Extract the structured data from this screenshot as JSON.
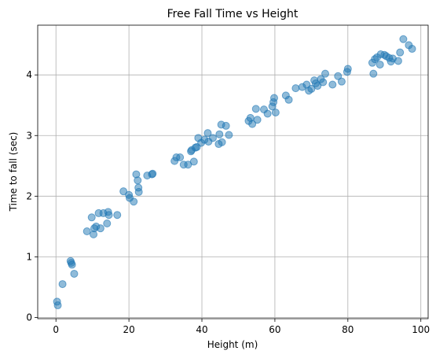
{
  "chart_data": {
    "type": "scatter",
    "title": "Free Fall Time vs Height",
    "xlabel": "Height (m)",
    "ylabel": "Time to fall (sec)",
    "xlim": [
      -5,
      102
    ],
    "ylim": [
      -0.02,
      4.82
    ],
    "xticks": [
      0,
      20,
      40,
      60,
      80,
      100
    ],
    "yticks": [
      0,
      1,
      2,
      3,
      4
    ],
    "grid": true,
    "color": "#1f77b4",
    "series": [
      {
        "x": [
          0.3,
          0.5,
          1.8,
          4,
          4.2,
          4.4,
          5,
          8.5,
          9.8,
          10.3,
          10.5,
          11,
          11.7,
          12.2,
          13,
          14,
          14.3,
          14.5,
          16.8,
          18.5,
          20,
          20.2,
          21.3,
          22,
          22.4,
          22.7,
          22.6,
          25,
          26.3,
          26.5,
          32.5,
          33,
          34,
          35,
          36.2,
          37,
          37.2,
          37.8,
          38.2,
          38.6,
          39,
          39.8,
          40.7,
          41.6,
          41.8,
          43,
          44.6,
          44.8,
          45.3,
          45.5,
          46.6,
          47.4,
          52.8,
          53.3,
          53.8,
          54.8,
          55.2,
          57,
          58,
          59.3,
          59.6,
          59.8,
          60.2,
          63,
          63.8,
          65.7,
          67.5,
          68.7,
          69.3,
          70,
          70.8,
          71.2,
          71.7,
          72.6,
          73.2,
          73.8,
          75.8,
          77.3,
          78.3,
          79.8,
          80,
          86.7,
          87,
          87.4,
          88,
          88.8,
          89,
          90,
          90.5,
          91.3,
          91.8,
          92.3,
          93.8,
          94.3,
          95.2,
          96.7,
          97.6
        ],
        "y": [
          0.26,
          0.2,
          0.55,
          0.93,
          0.9,
          0.87,
          0.72,
          1.42,
          1.65,
          1.37,
          1.47,
          1.5,
          1.72,
          1.47,
          1.72,
          1.55,
          1.74,
          1.69,
          1.69,
          2.08,
          2.02,
          1.97,
          1.91,
          2.36,
          2.26,
          2.07,
          2.14,
          2.34,
          2.36,
          2.37,
          2.58,
          2.64,
          2.64,
          2.52,
          2.52,
          2.74,
          2.76,
          2.57,
          2.8,
          2.81,
          2.96,
          2.88,
          2.93,
          3.04,
          2.9,
          2.96,
          2.86,
          3.02,
          3.18,
          2.89,
          3.16,
          3.01,
          3.24,
          3.29,
          3.19,
          3.44,
          3.26,
          3.43,
          3.36,
          3.48,
          3.55,
          3.62,
          3.38,
          3.66,
          3.59,
          3.78,
          3.8,
          3.84,
          3.74,
          3.77,
          3.91,
          3.86,
          3.82,
          3.93,
          3.88,
          4.02,
          3.84,
          3.98,
          3.89,
          4.05,
          4.1,
          4.2,
          4.02,
          4.26,
          4.29,
          4.17,
          4.34,
          4.33,
          4.31,
          4.28,
          4.22,
          4.27,
          4.23,
          4.37,
          4.59,
          4.49,
          4.43
        ]
      }
    ]
  }
}
